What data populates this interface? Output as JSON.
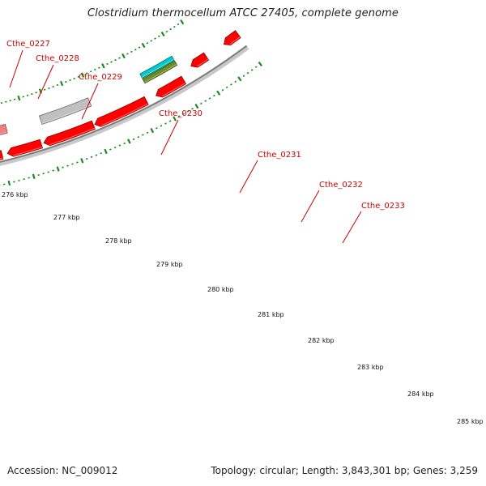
{
  "title": "Clostridium thermocellum ATCC 27405, complete genome",
  "footer": {
    "accession": "Accession: NC_009012",
    "summary": "Topology: circular; Length: 3,843,301 bp; Genes: 3,259"
  },
  "gene_labels": [
    "Cthe_0227",
    "Cthe_0228",
    "Cthe_0229",
    "Cthe_0230",
    "Cthe_0231",
    "Cthe_0232",
    "Cthe_0233"
  ],
  "kbp_labels": [
    "276 kbp",
    "277 kbp",
    "278 kbp",
    "279 kbp",
    "280 kbp",
    "281 kbp",
    "282 kbp",
    "283 kbp",
    "284 kbp",
    "285 kbp"
  ],
  "feature_colors": {
    "cds": "#ff0000",
    "cds_pale": "#f08080",
    "pseudo": "#c0c0c0",
    "rna_cyan": "#00cccc",
    "rna_olive": "#6b8e23",
    "navy": "#000080",
    "slate": "#7b68ee",
    "backbone": "#999999",
    "tick": "#1a8a1a"
  }
}
